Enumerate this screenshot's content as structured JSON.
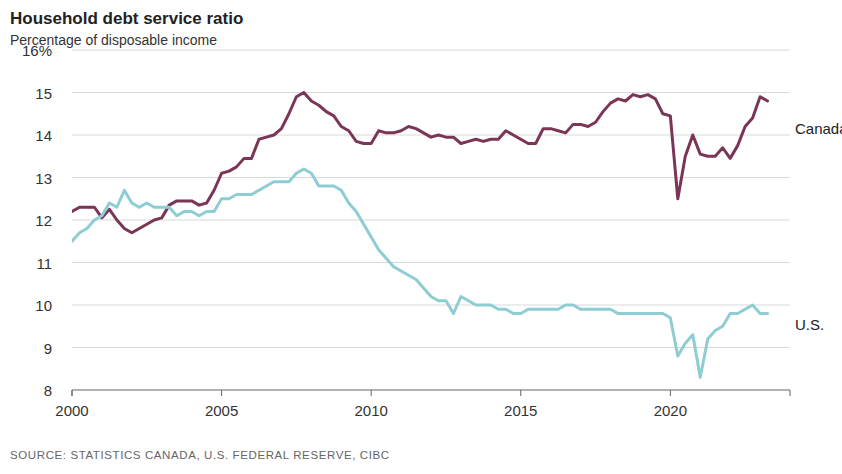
{
  "chart_data": {
    "type": "line",
    "title": "Household debt service ratio",
    "subtitle": "Percentage of disposable income",
    "source": "SOURCE: STATISTICS CANADA, U.S. FEDERAL RESERVE, CIBC",
    "x": [
      2000,
      2000.25,
      2000.5,
      2000.75,
      2001,
      2001.25,
      2001.5,
      2001.75,
      2002,
      2002.25,
      2002.5,
      2002.75,
      2003,
      2003.25,
      2003.5,
      2003.75,
      2004,
      2004.25,
      2004.5,
      2004.75,
      2005,
      2005.25,
      2005.5,
      2005.75,
      2006,
      2006.25,
      2006.5,
      2006.75,
      2007,
      2007.25,
      2007.5,
      2007.75,
      2008,
      2008.25,
      2008.5,
      2008.75,
      2009,
      2009.25,
      2009.5,
      2009.75,
      2010,
      2010.25,
      2010.5,
      2010.75,
      2011,
      2011.25,
      2011.5,
      2011.75,
      2012,
      2012.25,
      2012.5,
      2012.75,
      2013,
      2013.25,
      2013.5,
      2013.75,
      2014,
      2014.25,
      2014.5,
      2014.75,
      2015,
      2015.25,
      2015.5,
      2015.75,
      2016,
      2016.25,
      2016.5,
      2016.75,
      2017,
      2017.25,
      2017.5,
      2017.75,
      2018,
      2018.25,
      2018.5,
      2018.75,
      2019,
      2019.25,
      2019.5,
      2019.75,
      2020,
      2020.25,
      2020.5,
      2020.75,
      2021,
      2021.25,
      2021.5,
      2021.75,
      2022,
      2022.25,
      2022.5,
      2022.75,
      2023,
      2023.25
    ],
    "series": [
      {
        "name": "Canada",
        "color": "#7b3557",
        "values": [
          12.2,
          12.3,
          12.3,
          12.3,
          12.05,
          12.25,
          12.0,
          11.8,
          11.7,
          11.8,
          11.9,
          12.0,
          12.05,
          12.35,
          12.45,
          12.45,
          12.45,
          12.35,
          12.4,
          12.7,
          13.1,
          13.15,
          13.25,
          13.45,
          13.45,
          13.9,
          13.95,
          14.0,
          14.15,
          14.5,
          14.9,
          15.0,
          14.8,
          14.7,
          14.55,
          14.45,
          14.2,
          14.1,
          13.85,
          13.8,
          13.8,
          14.1,
          14.05,
          14.05,
          14.1,
          14.2,
          14.15,
          14.05,
          13.95,
          14.0,
          13.95,
          13.95,
          13.8,
          13.85,
          13.9,
          13.85,
          13.9,
          13.9,
          14.1,
          14.0,
          13.9,
          13.8,
          13.8,
          14.15,
          14.15,
          14.1,
          14.05,
          14.25,
          14.25,
          14.2,
          14.3,
          14.55,
          14.75,
          14.85,
          14.8,
          14.95,
          14.9,
          14.95,
          14.85,
          14.5,
          14.45,
          12.5,
          13.5,
          14.0,
          13.55,
          13.5,
          13.5,
          13.7,
          13.45,
          13.75,
          14.2,
          14.4,
          14.9,
          14.8
        ]
      },
      {
        "name": "U.S.",
        "color": "#8ecdd3",
        "values": [
          11.5,
          11.7,
          11.8,
          12.0,
          12.1,
          12.4,
          12.3,
          12.7,
          12.4,
          12.3,
          12.4,
          12.3,
          12.3,
          12.3,
          12.1,
          12.2,
          12.2,
          12.1,
          12.2,
          12.2,
          12.5,
          12.5,
          12.6,
          12.6,
          12.6,
          12.7,
          12.8,
          12.9,
          12.9,
          12.9,
          13.1,
          13.2,
          13.1,
          12.8,
          12.8,
          12.8,
          12.7,
          12.4,
          12.2,
          11.9,
          11.6,
          11.3,
          11.1,
          10.9,
          10.8,
          10.7,
          10.6,
          10.4,
          10.2,
          10.1,
          10.1,
          9.8,
          10.2,
          10.1,
          10.0,
          10.0,
          10.0,
          9.9,
          9.9,
          9.8,
          9.8,
          9.9,
          9.9,
          9.9,
          9.9,
          9.9,
          10.0,
          10.0,
          9.9,
          9.9,
          9.9,
          9.9,
          9.9,
          9.8,
          9.8,
          9.8,
          9.8,
          9.8,
          9.8,
          9.8,
          9.7,
          8.8,
          9.1,
          9.3,
          8.3,
          9.2,
          9.4,
          9.5,
          9.8,
          9.8,
          9.9,
          10.0,
          9.8,
          9.8
        ]
      }
    ],
    "xlim": [
      2000,
      2024
    ],
    "xticks": [
      2000,
      2005,
      2010,
      2015,
      2020
    ],
    "ylim": [
      8,
      16
    ],
    "yticks": [
      8,
      9,
      10,
      11,
      12,
      13,
      14,
      15,
      {
        "value": 16,
        "label": "16%"
      }
    ],
    "grid": true
  }
}
